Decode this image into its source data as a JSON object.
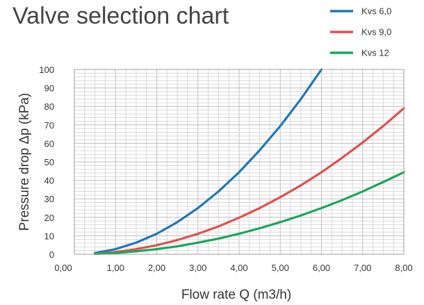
{
  "chart_data": {
    "type": "line",
    "title": "Valve selection chart",
    "xlabel": "Flow rate Q (m3/h)",
    "ylabel": "Pressure drop Δp (kPa)",
    "xlim": [
      0,
      8
    ],
    "ylim": [
      0,
      100
    ],
    "x_ticks": [
      0,
      1,
      2,
      3,
      4,
      5,
      6,
      7,
      8
    ],
    "x_tick_labels": [
      "0,00",
      "1,00",
      "2,00",
      "3,00",
      "4,00",
      "5,00",
      "6,00",
      "7,00",
      "8,00"
    ],
    "y_ticks": [
      0,
      10,
      20,
      30,
      40,
      50,
      60,
      70,
      80,
      90,
      100
    ],
    "y_tick_labels": [
      "0",
      "10",
      "20",
      "30",
      "40",
      "50",
      "60",
      "70",
      "80",
      "90",
      "100"
    ],
    "grid": true,
    "legend_position": "top-right",
    "series": [
      {
        "name": "Kvs 6,0",
        "color": "#1f77b4",
        "x": [
          0.5,
          1,
          1.5,
          2,
          2.5,
          3,
          3.5,
          4,
          4.5,
          5,
          5.5,
          6
        ],
        "y": [
          0.7,
          2.8,
          6.3,
          11.1,
          17.4,
          25.0,
          34.0,
          44.4,
          56.3,
          69.4,
          84.0,
          100.0
        ]
      },
      {
        "name": "Kvs 9,0",
        "color": "#e0504d",
        "x": [
          0.5,
          1,
          1.5,
          2,
          2.5,
          3,
          3.5,
          4,
          4.5,
          5,
          5.5,
          6,
          6.5,
          7,
          7.5,
          8
        ],
        "y": [
          0.3,
          1.2,
          2.8,
          4.9,
          7.7,
          11.1,
          15.1,
          19.8,
          25.0,
          30.9,
          37.3,
          44.4,
          52.2,
          60.5,
          69.4,
          79.0
        ]
      },
      {
        "name": "Kvs 12",
        "color": "#1aa65a",
        "x": [
          0.5,
          1,
          1.5,
          2,
          2.5,
          3,
          3.5,
          4,
          4.5,
          5,
          5.5,
          6,
          6.5,
          7,
          7.5,
          8
        ],
        "y": [
          0.2,
          0.7,
          1.6,
          2.8,
          4.3,
          6.3,
          8.5,
          11.1,
          14.1,
          17.4,
          21.0,
          25.0,
          29.3,
          34.0,
          39.1,
          44.4
        ]
      }
    ]
  }
}
